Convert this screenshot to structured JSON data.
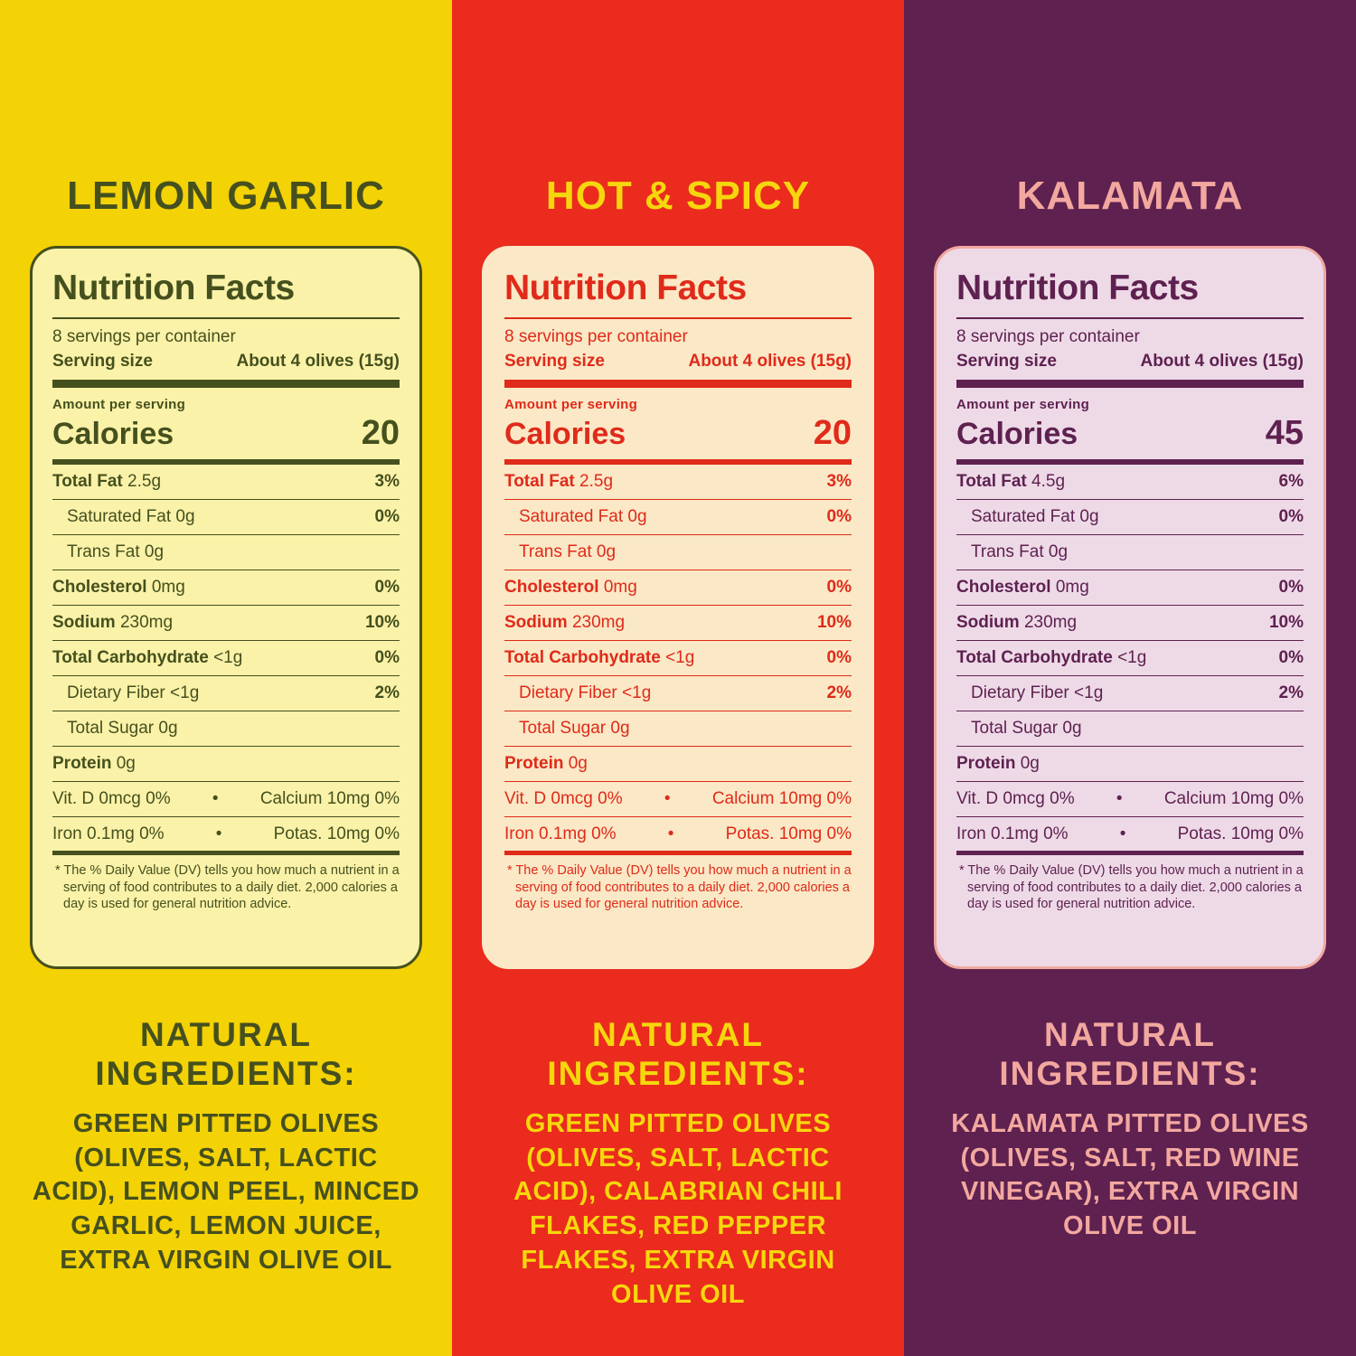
{
  "glyphs": {
    "bullet": "•"
  },
  "panels": [
    {
      "title": "LEMON GARLIC",
      "colors": {
        "background": "#F3D206",
        "title": "#45501E",
        "ink": "#45501E",
        "box_bg": "#FAF2A8",
        "box_border": "#45501E",
        "ingredients": "#45501E"
      },
      "nutrition": {
        "heading": "Nutrition Facts",
        "servings": "8 servings per container",
        "serving_size_label": "Serving size",
        "serving_size_value": "About 4 olives (15g)",
        "amount_per_serving": "Amount per serving",
        "calories_label": "Calories",
        "calories_value": "20",
        "rows": [
          {
            "label": "Total Fat",
            "value": "2.5g",
            "dv": "3%"
          },
          {
            "label": "Saturated Fat",
            "value": "0g",
            "dv": "0%"
          },
          {
            "label": "Trans Fat",
            "value": "0g",
            "dv": ""
          },
          {
            "label": "Cholesterol",
            "value": "0mg",
            "dv": "0%"
          },
          {
            "label": "Sodium",
            "value": "230mg",
            "dv": "10%"
          },
          {
            "label": "Total Carbohydrate",
            "value": "<1g",
            "dv": "0%"
          },
          {
            "label": "Dietary Fiber",
            "value": "<1g",
            "dv": "2%"
          },
          {
            "label": "Total Sugar",
            "value": "0g",
            "dv": ""
          },
          {
            "label": "Protein",
            "value": "0g",
            "dv": ""
          }
        ],
        "micros": [
          {
            "left": "Vit. D 0mcg 0%",
            "right": "Calcium 10mg 0%"
          },
          {
            "left": "Iron 0.1mg 0%",
            "right": "Potas. 10mg 0%"
          }
        ],
        "footnote": "* The % Daily Value (DV) tells you how much a nutrient in a serving of food contributes to a daily diet. 2,000 calories a day is used for general nutrition advice."
      },
      "ingredients_heading": "NATURAL INGREDIENTS:",
      "ingredients": "GREEN PITTED OLIVES (OLIVES, SALT, LACTIC ACID), LEMON PEEL, MINCED GARLIC, LEMON JUICE, EXTRA VIRGIN OLIVE OIL"
    },
    {
      "title": "HOT & SPICY",
      "colors": {
        "background": "#EA2B1E",
        "title": "#F6D70D",
        "ink": "#E02A1A",
        "box_bg": "#FAE8C6",
        "box_border": "#FAE8C6",
        "ingredients": "#F6D70D"
      },
      "nutrition": {
        "heading": "Nutrition Facts",
        "servings": "8 servings per container",
        "serving_size_label": "Serving size",
        "serving_size_value": "About 4 olives (15g)",
        "amount_per_serving": "Amount per serving",
        "calories_label": "Calories",
        "calories_value": "20",
        "rows": [
          {
            "label": "Total Fat",
            "value": "2.5g",
            "dv": "3%"
          },
          {
            "label": "Saturated Fat",
            "value": "0g",
            "dv": "0%"
          },
          {
            "label": "Trans Fat",
            "value": "0g",
            "dv": ""
          },
          {
            "label": "Cholesterol",
            "value": "0mg",
            "dv": "0%"
          },
          {
            "label": "Sodium",
            "value": "230mg",
            "dv": "10%"
          },
          {
            "label": "Total Carbohydrate",
            "value": "<1g",
            "dv": "0%"
          },
          {
            "label": "Dietary Fiber",
            "value": "<1g",
            "dv": "2%"
          },
          {
            "label": "Total Sugar",
            "value": "0g",
            "dv": ""
          },
          {
            "label": "Protein",
            "value": "0g",
            "dv": ""
          }
        ],
        "micros": [
          {
            "left": "Vit. D 0mcg 0%",
            "right": "Calcium 10mg 0%"
          },
          {
            "left": "Iron 0.1mg 0%",
            "right": "Potas. 10mg 0%"
          }
        ],
        "footnote": "* The % Daily Value (DV) tells you how much a nutrient in a serving of food contributes to a daily diet. 2,000 calories a day is used for general nutrition advice."
      },
      "ingredients_heading": "NATURAL INGREDIENTS:",
      "ingredients": "GREEN PITTED OLIVES (OLIVES, SALT, LACTIC ACID), CALABRIAN CHILI FLAKES, RED PEPPER FLAKES, EXTRA VIRGIN OLIVE OIL"
    },
    {
      "title": "KALAMATA",
      "colors": {
        "background": "#5E2150",
        "title": "#F3A89F",
        "ink": "#5E2150",
        "box_bg": "#EEDAE7",
        "box_border": "#F0A8A0",
        "ingredients": "#F3A89F"
      },
      "nutrition": {
        "heading": "Nutrition Facts",
        "servings": "8 servings per container",
        "serving_size_label": "Serving size",
        "serving_size_value": "About 4 olives (15g)",
        "amount_per_serving": "Amount per serving",
        "calories_label": "Calories",
        "calories_value": "45",
        "rows": [
          {
            "label": "Total Fat",
            "value": "4.5g",
            "dv": "6%"
          },
          {
            "label": "Saturated Fat",
            "value": "0g",
            "dv": "0%"
          },
          {
            "label": "Trans Fat",
            "value": "0g",
            "dv": ""
          },
          {
            "label": "Cholesterol",
            "value": "0mg",
            "dv": "0%"
          },
          {
            "label": "Sodium",
            "value": "230mg",
            "dv": "10%"
          },
          {
            "label": "Total Carbohydrate",
            "value": "<1g",
            "dv": "0%"
          },
          {
            "label": "Dietary Fiber",
            "value": "<1g",
            "dv": "2%"
          },
          {
            "label": "Total Sugar",
            "value": "0g",
            "dv": ""
          },
          {
            "label": "Protein",
            "value": "0g",
            "dv": ""
          }
        ],
        "micros": [
          {
            "left": "Vit. D 0mcg 0%",
            "right": "Calcium 10mg 0%"
          },
          {
            "left": "Iron 0.1mg 0%",
            "right": "Potas. 10mg 0%"
          }
        ],
        "footnote": "* The % Daily Value (DV) tells you how much a nutrient in a serving of food contributes to a daily diet. 2,000 calories a day is used for general nutrition advice."
      },
      "ingredients_heading": "NATURAL INGREDIENTS:",
      "ingredients": "KALAMATA PITTED OLIVES (OLIVES, SALT, RED WINE VINEGAR), EXTRA VIRGIN OLIVE OIL"
    }
  ]
}
